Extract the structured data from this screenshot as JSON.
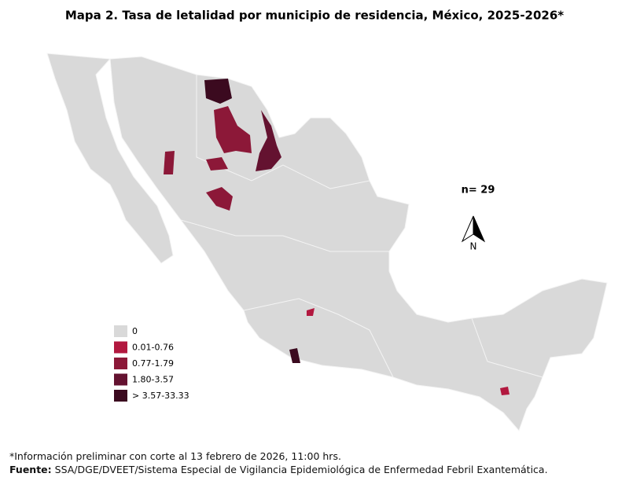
{
  "title": "Mapa 2. Tasa de letalidad por municipio de residencia, México, 2025-2026*",
  "n_label": "n= 29",
  "north_label": "N",
  "legend": [
    {
      "label": "0",
      "color": "#d9d9d9"
    },
    {
      "label": "0.01-0.76",
      "color": "#b2183f"
    },
    {
      "label": "0.77-1.79",
      "color": "#8c1838"
    },
    {
      "label": "1.80-3.57",
      "color": "#641230"
    },
    {
      "label": "> 3.57-33.33",
      "color": "#3b0a1f"
    }
  ],
  "footnote": "*Información preliminar con corte al 13 febrero de 2026, 11:00 hrs.",
  "source_label": "Fuente:",
  "source_text": "SSA/DGE/DVEET/Sistema Especial de Vigilancia Epidemiológica de Enfermedad Febril Exantemática."
}
